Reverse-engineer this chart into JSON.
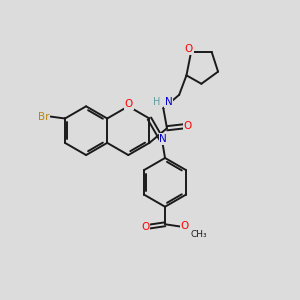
{
  "bg_color": "#dcdcdc",
  "bond_color": "#1a1a1a",
  "bond_width": 1.4,
  "atom_colors": {
    "O": "#ff0000",
    "N": "#0000cd",
    "Br": "#b8860b",
    "H_color": "#5f9ea0",
    "C": "#1a1a1a"
  },
  "font_size": 7.5,
  "fig_size": [
    3.0,
    3.0
  ],
  "dpi": 100
}
